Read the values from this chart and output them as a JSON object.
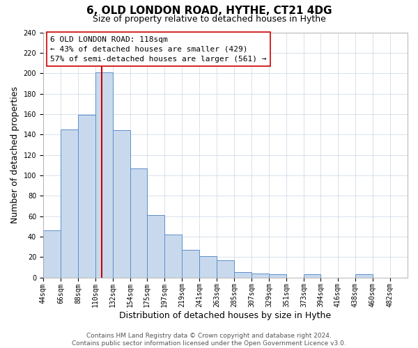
{
  "title": "6, OLD LONDON ROAD, HYTHE, CT21 4DG",
  "subtitle": "Size of property relative to detached houses in Hythe",
  "xlabel": "Distribution of detached houses by size in Hythe",
  "ylabel": "Number of detached properties",
  "bar_labels": [
    "44sqm",
    "66sqm",
    "88sqm",
    "110sqm",
    "132sqm",
    "154sqm",
    "175sqm",
    "197sqm",
    "219sqm",
    "241sqm",
    "263sqm",
    "285sqm",
    "307sqm",
    "329sqm",
    "351sqm",
    "373sqm",
    "394sqm",
    "416sqm",
    "438sqm",
    "460sqm",
    "482sqm"
  ],
  "bar_heights": [
    46,
    145,
    159,
    201,
    144,
    107,
    61,
    42,
    27,
    21,
    17,
    5,
    4,
    3,
    0,
    3,
    0,
    0,
    3,
    0,
    0
  ],
  "bar_edges": [
    44,
    66,
    88,
    110,
    132,
    154,
    175,
    197,
    219,
    241,
    263,
    285,
    307,
    329,
    351,
    373,
    394,
    416,
    438,
    460,
    482,
    504
  ],
  "bar_color": "#c9d9ed",
  "bar_edge_color": "#5b8fc9",
  "property_line_x": 118,
  "property_line_color": "#cc0000",
  "annotation_line1": "6 OLD LONDON ROAD: 118sqm",
  "annotation_line2": "← 43% of detached houses are smaller (429)",
  "annotation_line3": "57% of semi-detached houses are larger (561) →",
  "annotation_box_color": "#ffffff",
  "annotation_box_edge": "#cc0000",
  "ylim": [
    0,
    240
  ],
  "yticks": [
    0,
    20,
    40,
    60,
    80,
    100,
    120,
    140,
    160,
    180,
    200,
    220,
    240
  ],
  "footer_text": "Contains HM Land Registry data © Crown copyright and database right 2024.\nContains public sector information licensed under the Open Government Licence v3.0.",
  "bg_color": "#ffffff",
  "grid_color": "#c8d4e3",
  "title_fontsize": 11,
  "subtitle_fontsize": 9,
  "axis_label_fontsize": 9,
  "tick_fontsize": 7,
  "annotation_fontsize": 8,
  "footer_fontsize": 6.5
}
